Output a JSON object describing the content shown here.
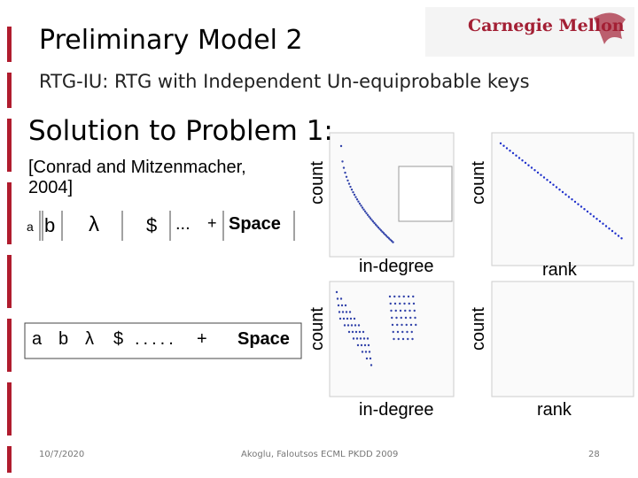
{
  "header": {
    "title": "Preliminary Model 2",
    "subtitle": "RTG-IU: RTG with Independent Un-equiprobable keys"
  },
  "logo": {
    "text": "Carnegie Mellon"
  },
  "section": {
    "heading": "Solution to Problem 1:",
    "citation": "[Conrad and Mitzenmacher, 2004]"
  },
  "key_rows": [
    [
      "a",
      "b",
      "λ",
      "$",
      "...",
      "+",
      "Space"
    ],
    [
      "a",
      "b",
      "λ",
      "$",
      ".....",
      "+",
      "Space"
    ]
  ],
  "plots": [
    {
      "y_label": "count",
      "x_label": "in-degree"
    },
    {
      "y_label": "count",
      "x_label": "rank"
    },
    {
      "y_label": "count",
      "x_label": "in-degree"
    },
    {
      "y_label": "count",
      "x_label": "rank"
    }
  ],
  "footer": {
    "date": "10/7/2020",
    "authors": "Akoglu, Faloutsos ECML PKDD 2009",
    "page": "28"
  }
}
